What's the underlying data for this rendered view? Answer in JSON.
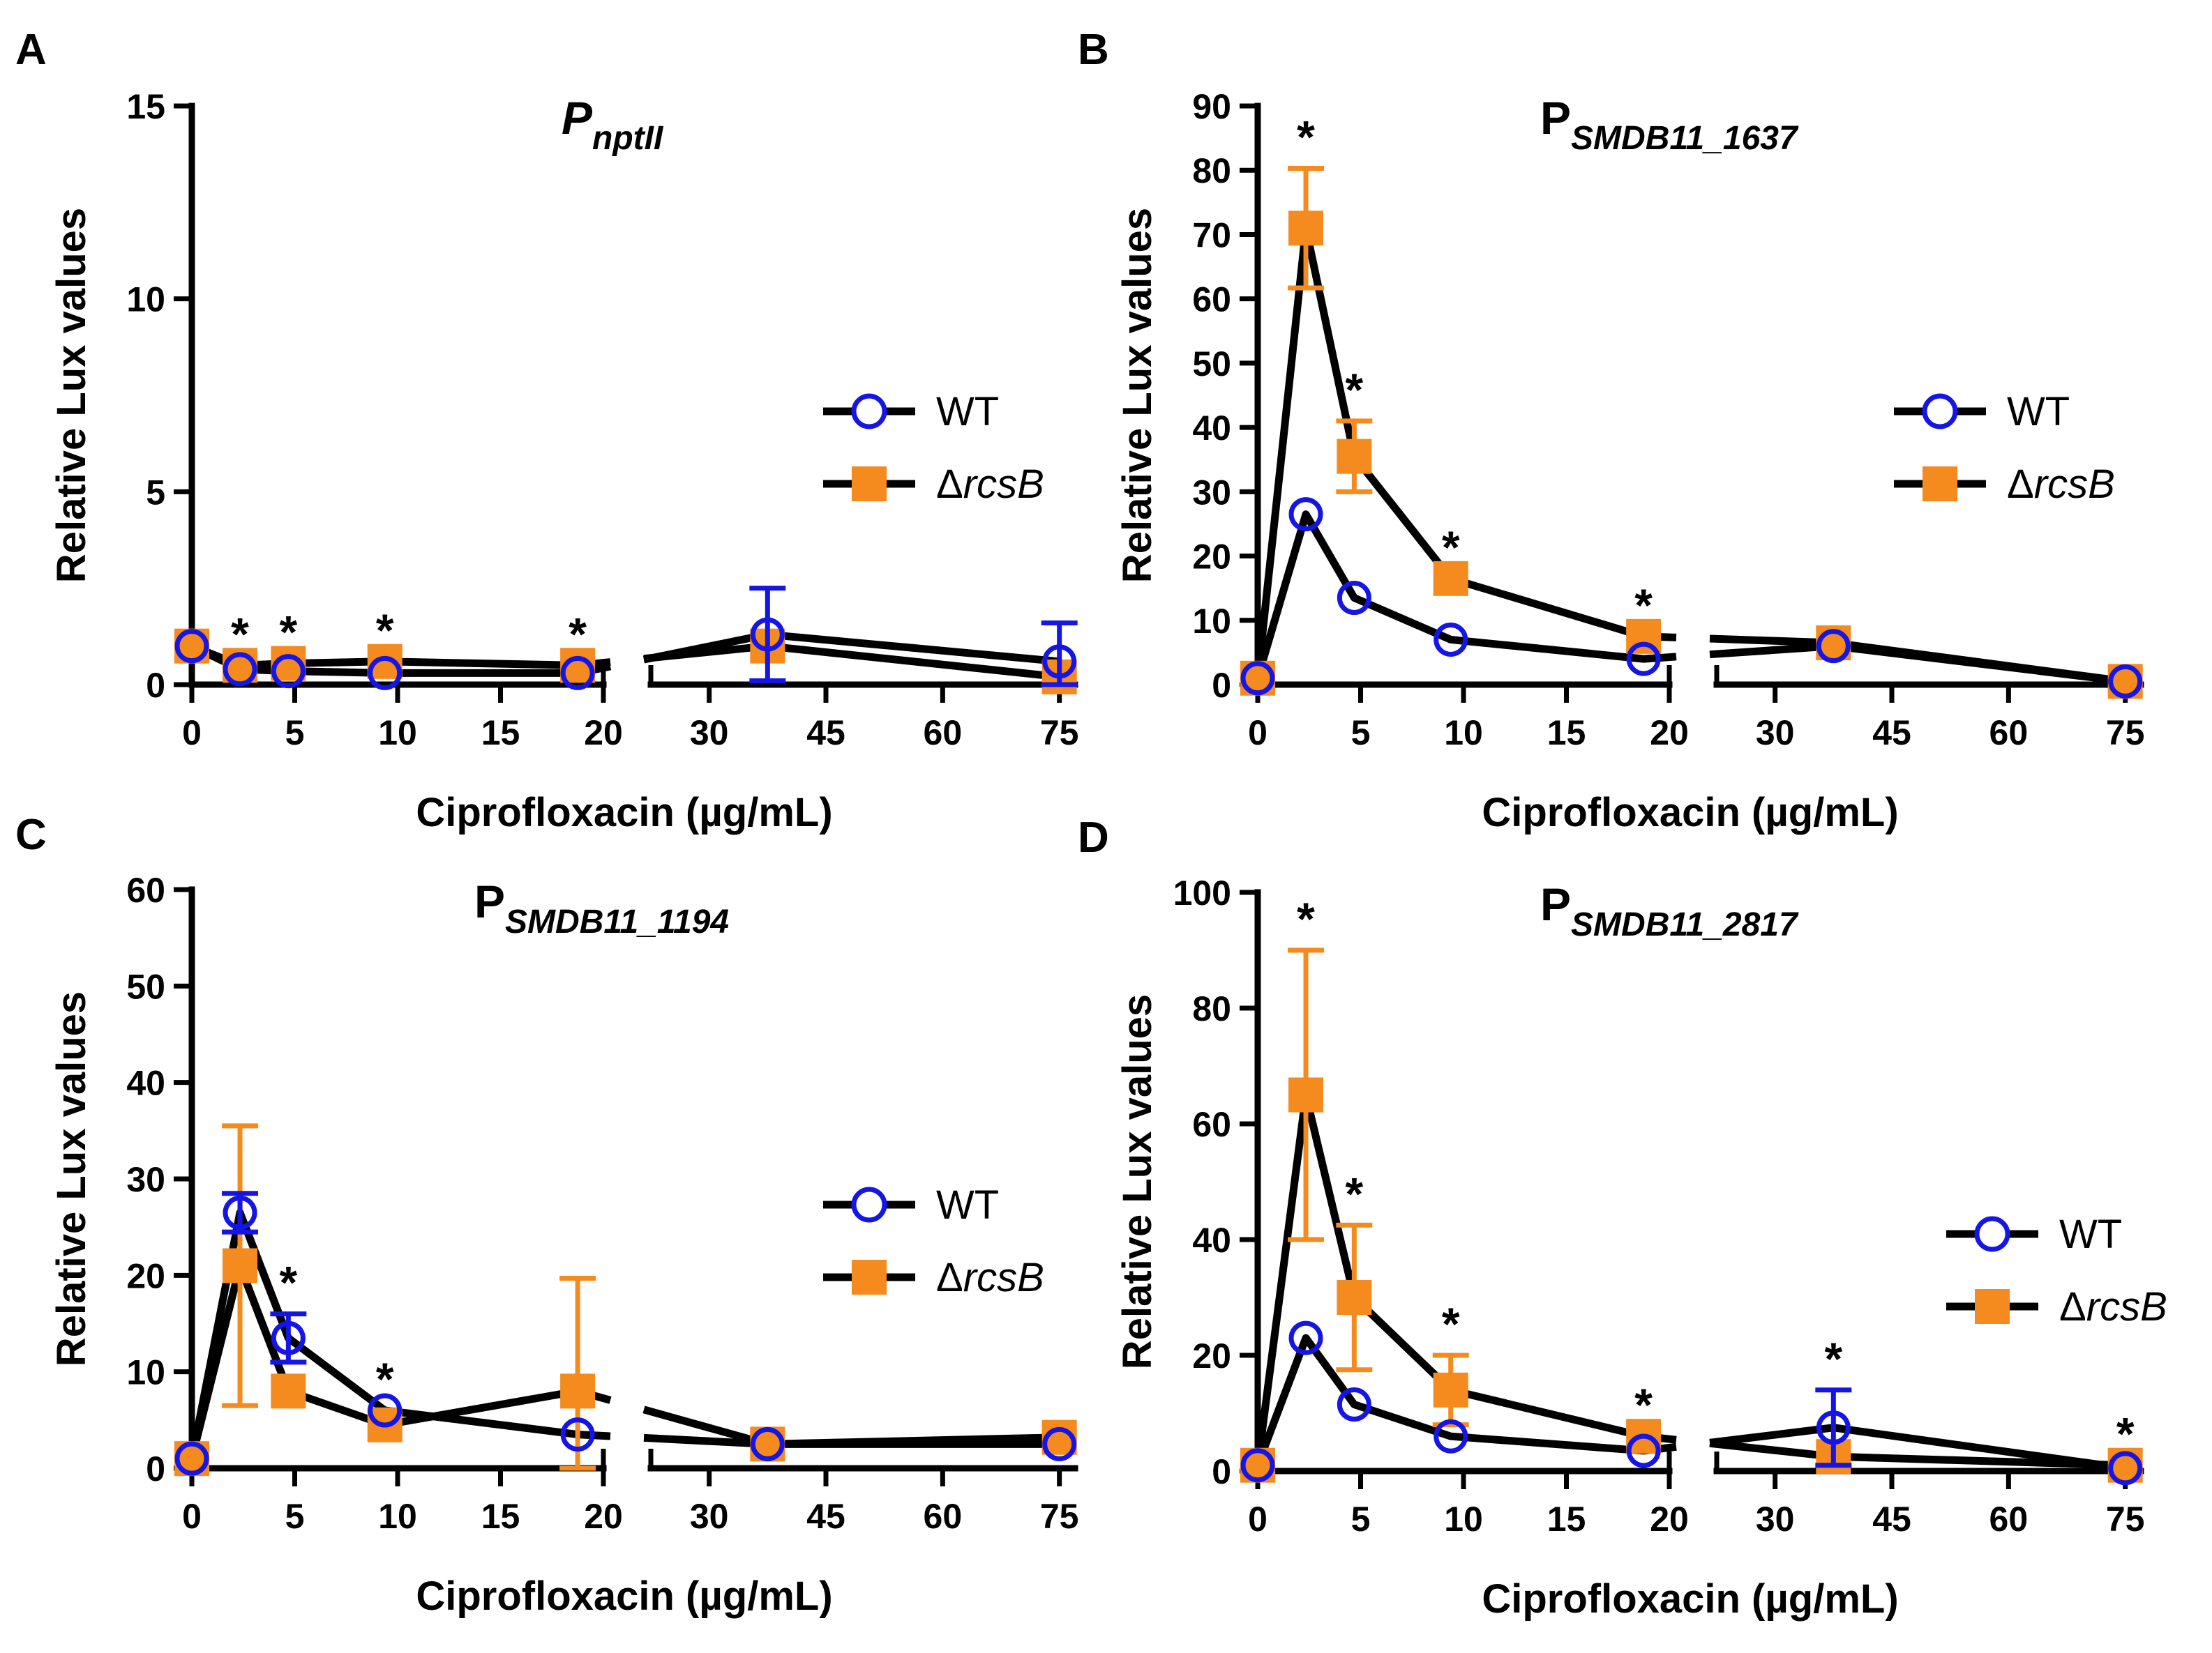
{
  "figure": {
    "xlabel": "Ciprofloxacin (µg/mL)",
    "ylabel": "Relative Lux values",
    "series": [
      {
        "key": "wt",
        "name": "WT",
        "italic": false,
        "marker": "open-circle",
        "color": "#1515e6"
      },
      {
        "key": "rcsb",
        "name": "ΔrcsB",
        "italic": true,
        "marker": "filled-square",
        "color": "#f58b1f"
      }
    ],
    "colors": {
      "wt": "#1515e6",
      "rcsb": "#f58b1f",
      "line": "#000000"
    },
    "significance_marker": "*"
  },
  "chart_data": [
    {
      "panel": "A",
      "type": "line",
      "title_main": "P",
      "title_sub": "nptII",
      "title_italic": true,
      "xlabel": "Ciprofloxacin (µg/mL)",
      "ylabel": "Relative Lux values",
      "ylim": [
        0,
        15
      ],
      "yticks": [
        0,
        5,
        10,
        15
      ],
      "x_left_ticks": [
        0,
        5,
        10,
        15,
        20
      ],
      "x_right_ticks": [
        30,
        45,
        60,
        75
      ],
      "x_axis_break": true,
      "x": [
        0,
        2.34,
        4.69,
        9.38,
        18.75,
        37.5,
        75
      ],
      "series": [
        {
          "name": "WT",
          "values": [
            1.0,
            0.4,
            0.35,
            0.3,
            0.3,
            1.3,
            0.6
          ],
          "err": [
            0,
            0,
            0,
            0,
            0,
            1.2,
            1.0
          ]
        },
        {
          "name": "ΔrcsB",
          "values": [
            1.0,
            0.5,
            0.55,
            0.6,
            0.5,
            1.0,
            0.2
          ],
          "err": [
            0,
            0,
            0,
            0,
            0,
            0,
            0
          ]
        }
      ],
      "significance_x": [
        2.34,
        4.69,
        9.38,
        18.75
      ],
      "legend_position": "right"
    },
    {
      "panel": "B",
      "type": "line",
      "title_main": "P",
      "title_sub": "SMDB11_1637",
      "title_italic": false,
      "xlabel": "Ciprofloxacin (µg/mL)",
      "ylabel": "Relative Lux values",
      "ylim": [
        0,
        90
      ],
      "yticks": [
        0,
        10,
        20,
        30,
        40,
        50,
        60,
        70,
        80,
        90
      ],
      "x_left_ticks": [
        0,
        5,
        10,
        15,
        20
      ],
      "x_right_ticks": [
        30,
        45,
        60,
        75
      ],
      "x_axis_break": true,
      "x": [
        0,
        2.34,
        4.69,
        9.38,
        18.75,
        37.5,
        75
      ],
      "series": [
        {
          "name": "WT",
          "values": [
            1,
            26.5,
            13.5,
            7,
            4,
            6,
            0.5
          ],
          "err": [
            0,
            0,
            0,
            0,
            0,
            0,
            0
          ]
        },
        {
          "name": "ΔrcsB",
          "values": [
            1,
            71,
            35.5,
            16.5,
            7.5,
            6.5,
            0.5
          ],
          "err": [
            0,
            9.3,
            5.5,
            0,
            0,
            0,
            0
          ]
        }
      ],
      "significance_x": [
        2.34,
        4.69,
        9.38,
        18.75
      ],
      "legend_position": "right"
    },
    {
      "panel": "C",
      "type": "line",
      "title_main": "P",
      "title_sub": "SMDB11_1194",
      "title_italic": false,
      "xlabel": "Ciprofloxacin (µg/mL)",
      "ylabel": "Relative Lux values",
      "ylim": [
        0,
        60
      ],
      "yticks": [
        0,
        10,
        20,
        30,
        40,
        50,
        60
      ],
      "x_left_ticks": [
        0,
        5,
        10,
        15,
        20
      ],
      "x_right_ticks": [
        30,
        45,
        60,
        75
      ],
      "x_axis_break": true,
      "x": [
        0,
        2.34,
        4.69,
        9.38,
        18.75,
        37.5,
        75
      ],
      "series": [
        {
          "name": "WT",
          "values": [
            1,
            26.5,
            13.5,
            6,
            3.5,
            2.5,
            2.5
          ],
          "err": [
            0,
            2,
            2.5,
            0,
            0,
            0,
            0
          ]
        },
        {
          "name": "ΔrcsB",
          "values": [
            1,
            21,
            8,
            4.5,
            8,
            2.5,
            3.2
          ],
          "err": [
            0,
            14.5,
            0,
            0,
            11.7,
            0,
            0
          ]
        }
      ],
      "significance_x": [
        4.69,
        9.38
      ],
      "legend_position": "right"
    },
    {
      "panel": "D",
      "type": "line",
      "title_main": "P",
      "title_sub": "SMDB11_2817",
      "title_italic": false,
      "xlabel": "Ciprofloxacin (µg/mL)",
      "ylabel": "Relative Lux values",
      "ylim": [
        0,
        100
      ],
      "yticks": [
        0,
        20,
        40,
        60,
        80,
        100
      ],
      "x_left_ticks": [
        0,
        5,
        10,
        15,
        20
      ],
      "x_right_ticks": [
        30,
        45,
        60,
        75
      ],
      "x_axis_break": true,
      "x": [
        0,
        2.34,
        4.69,
        9.38,
        18.75,
        37.5,
        75
      ],
      "series": [
        {
          "name": "WT",
          "values": [
            1,
            23,
            11.5,
            6,
            3.5,
            7.5,
            0.5
          ],
          "err": [
            0,
            0,
            0,
            0,
            0,
            6.5,
            0
          ]
        },
        {
          "name": "ΔrcsB",
          "values": [
            1,
            65,
            30,
            14,
            6,
            2.5,
            1
          ],
          "err": [
            0,
            25,
            12.5,
            6,
            0,
            0,
            0
          ]
        }
      ],
      "significance_x": [
        2.34,
        4.69,
        9.38,
        18.75,
        37.5,
        75
      ],
      "legend_position": "right"
    }
  ]
}
